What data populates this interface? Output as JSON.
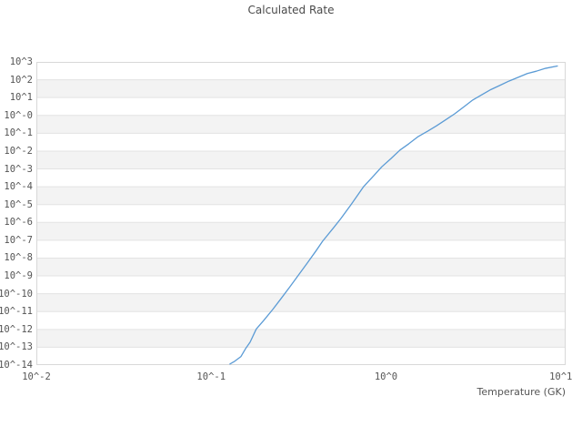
{
  "page": {
    "background": "#ffffff"
  },
  "chart_data": {
    "type": "line",
    "title": "Calculated Rate",
    "xlabel": "Temperature (GK)",
    "ylabel": "",
    "x_scale": "log",
    "y_scale": "log",
    "xlim": [
      0.01,
      10.65
    ],
    "ylim": [
      1e-14,
      1000
    ],
    "grid": "horizontal-bands-alternating",
    "legend": "none",
    "band_colors": [
      "#ffffff",
      "#f3f3f3"
    ],
    "gridline_color": "#e3e3e3",
    "border_color": "#d8d8d8",
    "x_ticks": [
      {
        "label": "10^-2",
        "value": 0.01
      },
      {
        "label": "10^-1",
        "value": 0.1
      },
      {
        "label": "10^0",
        "value": 1
      },
      {
        "label": "10^1",
        "value": 10
      }
    ],
    "y_ticks": [
      {
        "label": "10^3",
        "log10": 3
      },
      {
        "label": "10^2",
        "log10": 2
      },
      {
        "label": "10^1",
        "log10": 1
      },
      {
        "label": "10^-0",
        "log10": 0
      },
      {
        "label": "10^-1",
        "log10": -1
      },
      {
        "label": "10^-2",
        "log10": -2
      },
      {
        "label": "10^-3",
        "log10": -3
      },
      {
        "label": "10^-4",
        "log10": -4
      },
      {
        "label": "10^-5",
        "log10": -5
      },
      {
        "label": "10^-6",
        "log10": -6
      },
      {
        "label": "10^-7",
        "log10": -7
      },
      {
        "label": "10^-8",
        "log10": -8
      },
      {
        "label": "10^-9",
        "log10": -9
      },
      {
        "label": "10^-10",
        "log10": -10
      },
      {
        "label": "10^-11",
        "log10": -11
      },
      {
        "label": "10^-12",
        "log10": -12
      },
      {
        "label": "10^-13",
        "log10": -13
      },
      {
        "label": "10^-14",
        "log10": -14
      }
    ],
    "series": [
      {
        "name": "Calculated Rate",
        "color": "#5b9bd5",
        "temperature_gk": [
          0.128,
          0.136,
          0.148,
          0.157,
          0.167,
          0.181,
          0.2,
          0.225,
          0.251,
          0.282,
          0.322,
          0.355,
          0.398,
          0.434,
          0.501,
          0.552,
          0.631,
          0.745,
          0.851,
          0.946,
          1.07,
          1.2,
          1.35,
          1.53,
          1.74,
          1.94,
          2.19,
          2.47,
          2.82,
          3.13,
          3.55,
          3.98,
          4.47,
          5.06,
          5.75,
          6.43,
          7.24,
          8.17,
          9.55
        ],
        "log10_rate": [
          -13.94,
          -13.79,
          -13.52,
          -13.09,
          -12.71,
          -11.98,
          -11.49,
          -10.88,
          -10.27,
          -9.61,
          -8.84,
          -8.27,
          -7.59,
          -7.05,
          -6.3,
          -5.78,
          -5.0,
          -3.99,
          -3.38,
          -2.88,
          -2.41,
          -1.95,
          -1.59,
          -1.18,
          -0.87,
          -0.59,
          -0.25,
          0.09,
          0.52,
          0.86,
          1.17,
          1.45,
          1.68,
          1.93,
          2.15,
          2.35,
          2.48,
          2.64,
          2.77
        ]
      }
    ]
  }
}
